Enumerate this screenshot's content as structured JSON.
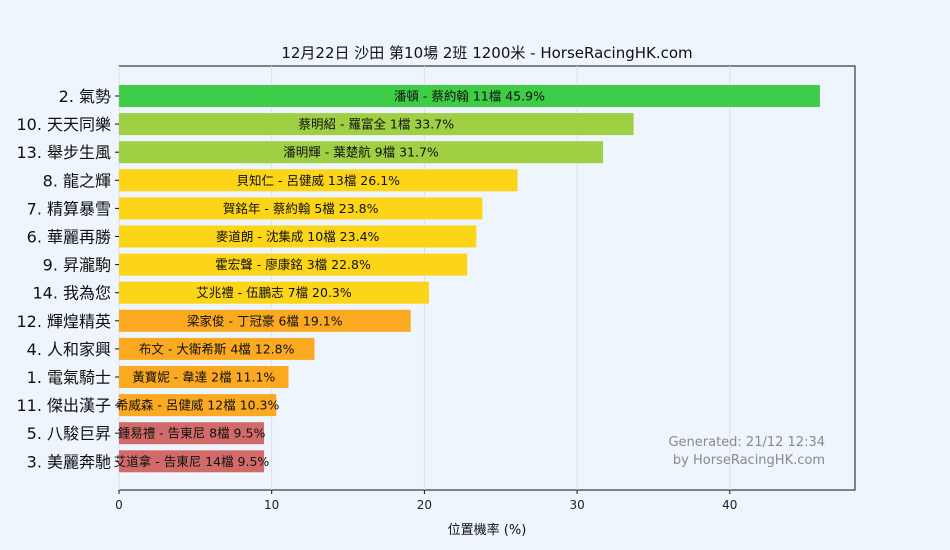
{
  "chart_data": {
    "type": "bar",
    "orientation": "horizontal",
    "title": "12月22日 沙田 第10場 2班 1200米 - HorseRacingHK.com",
    "xlabel": "位置機率 (%)",
    "ylabel": "",
    "xlim": [
      0,
      48.2
    ],
    "xticks": [
      0,
      10,
      20,
      30,
      40
    ],
    "grid": true,
    "categories": [
      "2. 氣勢",
      "10. 天天同樂",
      "13. 舉步生風",
      "8. 龍之輝",
      "7. 精算暴雪",
      "6. 華麗再勝",
      "9. 昇瀧駒",
      "14. 我為您",
      "12. 輝煌精英",
      "4. 人和家興",
      "1. 電氣騎士",
      "11. 傑出漢子",
      "5. 八駿巨昇",
      "3. 美麗奔馳"
    ],
    "values": [
      45.9,
      33.7,
      31.7,
      26.1,
      23.8,
      23.4,
      22.8,
      20.3,
      19.1,
      12.8,
      11.1,
      10.3,
      9.5,
      9.5
    ],
    "bar_labels": [
      "潘頓 - 蔡約翰 11檔  45.9%",
      "蔡明紹 - 羅富全 1檔  33.7%",
      "潘明輝 - 葉楚航 9檔  31.7%",
      "貝知仁 - 呂健威 13檔  26.1%",
      "賀銘年 - 蔡約翰 5檔  23.8%",
      "麥道朗 - 沈集成 10檔  23.4%",
      "霍宏聲 - 廖康銘 3檔  22.8%",
      "艾兆禮 - 伍鵬志 7檔  20.3%",
      "梁家俊 - 丁冠豪 6檔  19.1%",
      "布文 - 大衛希斯 4檔  12.8%",
      "黃寶妮 - 韋達 2檔  11.1%",
      "希威森 - 呂健威 12檔  10.3%",
      "鍾易禮 - 告東尼 8檔  9.5%",
      "艾道拿 - 告東尼 14檔  9.5%"
    ],
    "colors": [
      "#3fcc47",
      "#9fd043",
      "#9fd043",
      "#fcd519",
      "#fcd519",
      "#fcd519",
      "#fcd519",
      "#fcd519",
      "#fba921",
      "#fba921",
      "#fba921",
      "#fba921",
      "#d26a6a",
      "#d26a6a"
    ]
  },
  "watermark": {
    "line1": "Generated: 21/12 12:34",
    "line2": "by HorseRacingHK.com"
  }
}
